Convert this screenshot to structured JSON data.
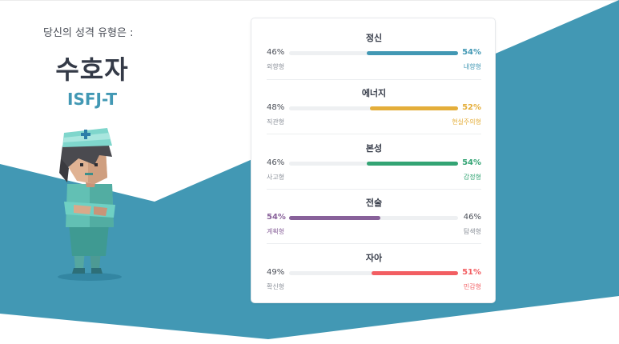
{
  "header": {
    "intro": "당신의 성격 유형은 :",
    "type_name": "수호자",
    "type_code": "ISFJ-T"
  },
  "colors": {
    "background_teal": "#4298b4",
    "text_dark": "#343a47",
    "track": "#eef0f2"
  },
  "avatar": {
    "icon": "nurse-character-icon"
  },
  "traits": [
    {
      "title": "정신",
      "left": {
        "percent": "46%",
        "label": "외향형"
      },
      "right": {
        "percent": "54%",
        "label": "내향형"
      },
      "dominant": "right",
      "value": 54,
      "color": "#4298b4"
    },
    {
      "title": "에너지",
      "left": {
        "percent": "48%",
        "label": "직관형"
      },
      "right": {
        "percent": "52%",
        "label": "현실주의형"
      },
      "dominant": "right",
      "value": 52,
      "color": "#e4ae3a"
    },
    {
      "title": "본성",
      "left": {
        "percent": "46%",
        "label": "사고형"
      },
      "right": {
        "percent": "54%",
        "label": "감정형"
      },
      "dominant": "right",
      "value": 54,
      "color": "#33a474"
    },
    {
      "title": "전술",
      "left": {
        "percent": "54%",
        "label": "계획형"
      },
      "right": {
        "percent": "46%",
        "label": "탐색형"
      },
      "dominant": "left",
      "value": 54,
      "color": "#88619a"
    },
    {
      "title": "자아",
      "left": {
        "percent": "49%",
        "label": "확신형"
      },
      "right": {
        "percent": "51%",
        "label": "민감형"
      },
      "dominant": "right",
      "value": 51,
      "color": "#f25e62"
    }
  ]
}
